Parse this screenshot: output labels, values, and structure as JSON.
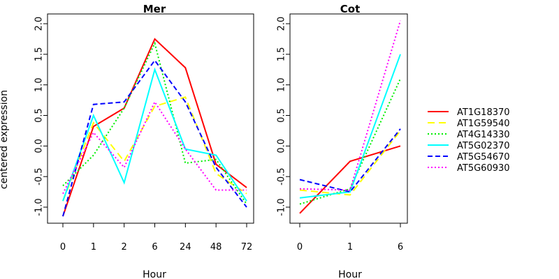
{
  "chart_data": {
    "type": "line",
    "ylabel": "centered expression",
    "legend_position": "right",
    "series": [
      {
        "name": "AT1G18370",
        "color": "#ff0000",
        "dash": "solid"
      },
      {
        "name": "AT1G59540",
        "color": "#ffff00",
        "dash": "longdash"
      },
      {
        "name": "AT4G14330",
        "color": "#00ee00",
        "dash": "dotted"
      },
      {
        "name": "AT5G02370",
        "color": "#00ffff",
        "dash": "solid"
      },
      {
        "name": "AT5G54670",
        "color": "#0000ff",
        "dash": "dashed"
      },
      {
        "name": "AT5G60930",
        "color": "#ff00ff",
        "dash": "dotted"
      }
    ],
    "panels": [
      {
        "title": "Mer",
        "xlabel": "Hour",
        "categories": [
          "0",
          "1",
          "2",
          "6",
          "24",
          "48",
          "72"
        ],
        "ylim": [
          -1.2,
          2.2
        ],
        "yticks": [
          "-1.0",
          "-0.5",
          "0.0",
          "0.5",
          "1.0",
          "1.5",
          "2.0"
        ],
        "values": [
          [
            -1.15,
            0.32,
            0.62,
            1.75,
            1.28,
            -0.3,
            -0.68
          ],
          [
            -0.9,
            0.38,
            -0.25,
            0.65,
            0.8,
            -0.45,
            -0.78
          ],
          [
            -0.65,
            -0.15,
            0.62,
            1.68,
            -0.28,
            -0.22,
            -0.95
          ],
          [
            -0.9,
            0.5,
            -0.6,
            1.25,
            -0.05,
            -0.15,
            -0.9
          ],
          [
            -1.15,
            0.68,
            0.72,
            1.4,
            0.72,
            -0.35,
            -1.0
          ],
          [
            -0.78,
            0.22,
            -0.35,
            0.72,
            -0.05,
            -0.72,
            -0.72
          ]
        ]
      },
      {
        "title": "Cot",
        "xlabel": "Hour",
        "categories": [
          "0",
          "1",
          "6"
        ],
        "ylim": [
          -1.2,
          2.2
        ],
        "yticks": [
          "-1.0",
          "-0.5",
          "0.0",
          "0.5",
          "1.0",
          "1.5",
          "2.0"
        ],
        "values": [
          [
            -1.1,
            -0.25,
            0.0
          ],
          [
            -0.72,
            -0.8,
            0.25
          ],
          [
            -0.95,
            -0.7,
            1.1
          ],
          [
            -0.85,
            -0.75,
            1.5
          ],
          [
            -0.55,
            -0.75,
            0.28
          ],
          [
            -0.7,
            -0.72,
            2.05
          ]
        ]
      }
    ]
  }
}
